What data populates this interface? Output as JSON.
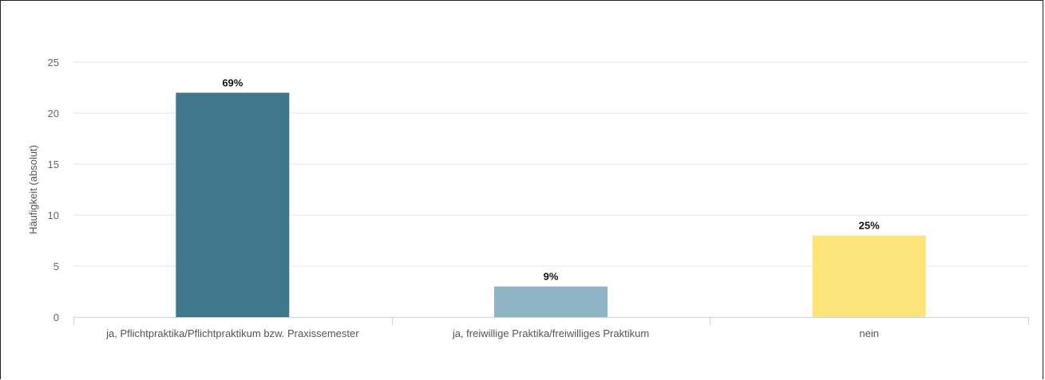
{
  "chart_data": {
    "type": "bar",
    "ylabel": "Häufigkeit (absolut)",
    "xlabel": "",
    "ylim": [
      0,
      25
    ],
    "yticks": [
      0,
      5,
      10,
      15,
      20,
      25
    ],
    "grid": true,
    "categories": [
      "ja, Pflichtpraktika/Pflichtpraktikum bzw. Praxissemester",
      "ja, freiwillige Praktika/freiwilliges Praktikum",
      "nein"
    ],
    "values": [
      22,
      3,
      8
    ],
    "data_labels": [
      "69%",
      "9%",
      "25%"
    ],
    "colors": [
      "#3e778c",
      "#8fb4c4",
      "#fde47a"
    ]
  }
}
